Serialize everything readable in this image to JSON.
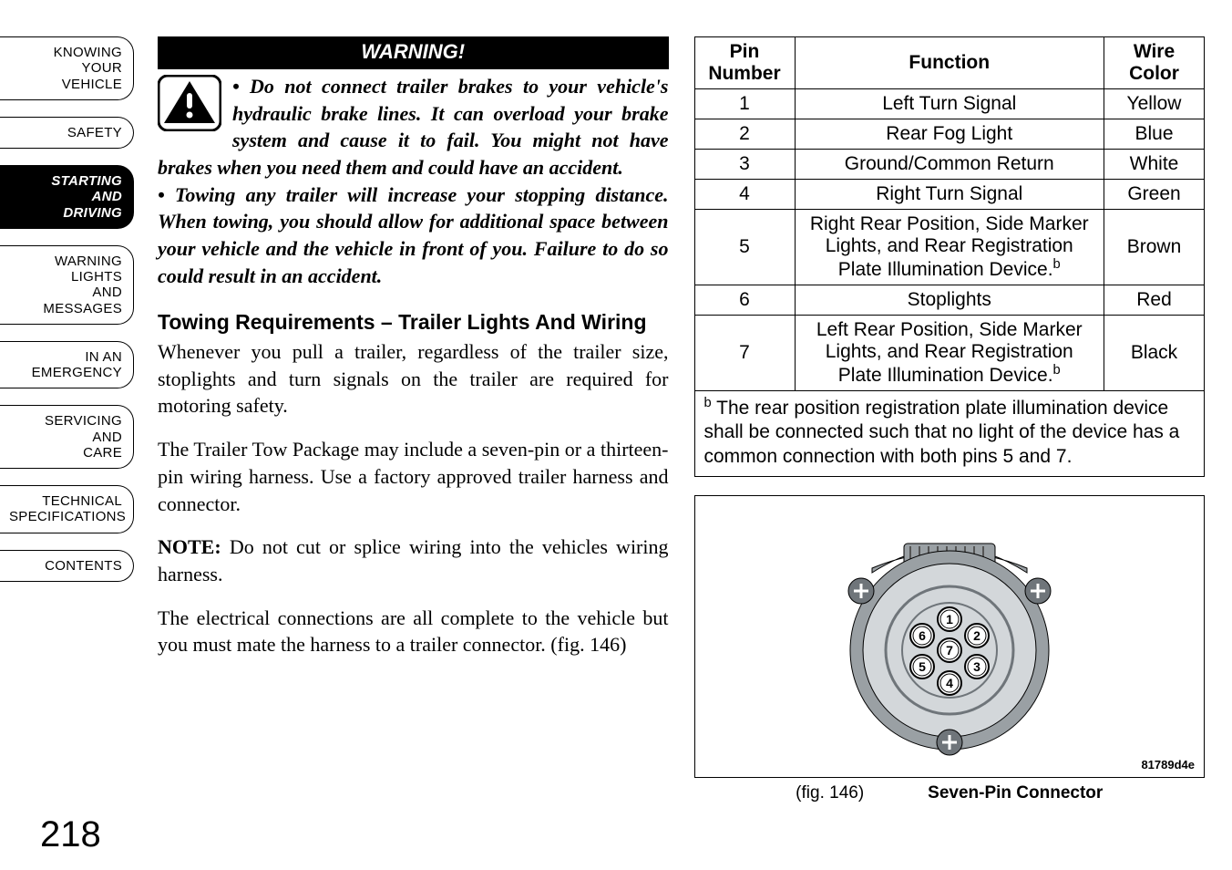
{
  "sidebar": {
    "items": [
      {
        "label": "KNOWING\nYOUR\nVEHICLE",
        "active": false
      },
      {
        "label": "SAFETY",
        "active": false
      },
      {
        "label": "STARTING\nAND\nDRIVING",
        "active": true
      },
      {
        "label": "WARNING\nLIGHTS\nAND\nMESSAGES",
        "active": false
      },
      {
        "label": "IN AN\nEMERGENCY",
        "active": false
      },
      {
        "label": "SERVICING\nAND\nCARE",
        "active": false
      },
      {
        "label": "TECHNICAL\nSPECIFICATIONS",
        "active": false
      },
      {
        "label": "CONTENTS",
        "active": false
      }
    ]
  },
  "warning": {
    "header": "WARNING!",
    "bullets": [
      "Do not connect trailer brakes to your vehicle's hydraulic brake lines. It can overload your brake system and cause it to fail. You might not have brakes when you need them and could have an accident.",
      "Towing any trailer will increase your stopping distance. When towing, you should allow for additional space between your vehicle and the vehicle in front of you. Failure to do so could result in an accident."
    ],
    "icon_colors": {
      "border": "#000000",
      "bg": "#ffffff",
      "mark": "#000000"
    }
  },
  "section": {
    "heading": "Towing Requirements – Trailer Lights And Wiring",
    "p1": "Whenever you pull a trailer, regardless of the trailer size, stoplights and turn signals on the trailer are required for motoring safety.",
    "p2": "The Trailer Tow Package may include a seven-pin or a thirteen-pin wiring harness. Use a factory approved trailer harness and connector.",
    "note_label": "NOTE:",
    "note_text": "Do not cut or splice wiring into the vehicles wiring harness.",
    "p3": "The electrical connections are all complete to the vehicle but you must mate the harness to a trailer connector. (fig. 146)"
  },
  "pin_table": {
    "columns": [
      "Pin Number",
      "Function",
      "Wire Color"
    ],
    "rows": [
      {
        "pin": "1",
        "func": "Left Turn Signal",
        "color": "Yellow",
        "sup": false
      },
      {
        "pin": "2",
        "func": "Rear Fog Light",
        "color": "Blue",
        "sup": false
      },
      {
        "pin": "3",
        "func": "Ground/Common Return",
        "color": "White",
        "sup": false
      },
      {
        "pin": "4",
        "func": "Right Turn Signal",
        "color": "Green",
        "sup": false
      },
      {
        "pin": "5",
        "func": "Right Rear Position, Side Marker Lights, and Rear Registration Plate Illumination Device.",
        "color": "Brown",
        "sup": true
      },
      {
        "pin": "6",
        "func": "Stoplights",
        "color": "Red",
        "sup": false
      },
      {
        "pin": "7",
        "func": "Left Rear Position, Side Marker Lights, and Rear Registration Plate Illumination Device.",
        "color": "Black",
        "sup": true
      }
    ],
    "footnote_marker": "b",
    "footnote": "The rear position registration plate illumination device shall be connected such that no light of the device has a common connection with both pins 5 and 7."
  },
  "figure": {
    "id": "81789d4e",
    "ref": "(fig. 146)",
    "title": "Seven-Pin Connector",
    "connector": {
      "outer_color": "#9aa0a4",
      "inner_color": "#d3d7da",
      "ring_color": "#6f757a",
      "pin_labels": [
        "1",
        "2",
        "3",
        "4",
        "5",
        "6",
        "7"
      ],
      "screw_color": "#6f757a"
    }
  },
  "page_number": "218"
}
